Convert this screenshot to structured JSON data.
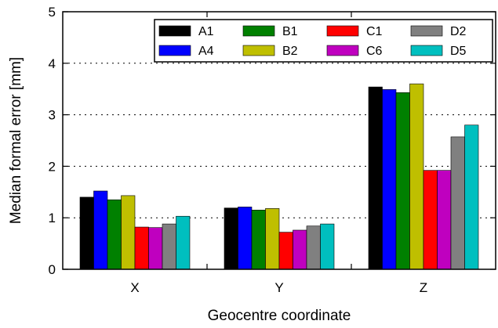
{
  "chart_data": {
    "type": "bar",
    "xlabel": "Geocentre coordinate",
    "ylabel": "Median formal error [mm]",
    "ylim": [
      0,
      5
    ],
    "yticks": [
      "0",
      "1",
      "2",
      "3",
      "4",
      "5"
    ],
    "grid": "horizontal dotted",
    "legend_position": "top-right",
    "categories": [
      "X",
      "Y",
      "Z"
    ],
    "series": [
      {
        "name": "A1",
        "color": "#000000",
        "values": [
          1.4,
          1.19,
          3.54
        ]
      },
      {
        "name": "A4",
        "color": "#0000ff",
        "values": [
          1.52,
          1.21,
          3.49
        ]
      },
      {
        "name": "B1",
        "color": "#008000",
        "values": [
          1.35,
          1.15,
          3.43
        ]
      },
      {
        "name": "B2",
        "color": "#bfbf00",
        "values": [
          1.43,
          1.18,
          3.6
        ]
      },
      {
        "name": "C1",
        "color": "#ff0000",
        "values": [
          0.82,
          0.72,
          1.92
        ]
      },
      {
        "name": "C6",
        "color": "#bf00bf",
        "values": [
          0.81,
          0.76,
          1.92
        ]
      },
      {
        "name": "D2",
        "color": "#808080",
        "values": [
          0.88,
          0.84,
          2.57
        ]
      },
      {
        "name": "D5",
        "color": "#00bfbf",
        "values": [
          1.03,
          0.88,
          2.8
        ]
      }
    ]
  }
}
